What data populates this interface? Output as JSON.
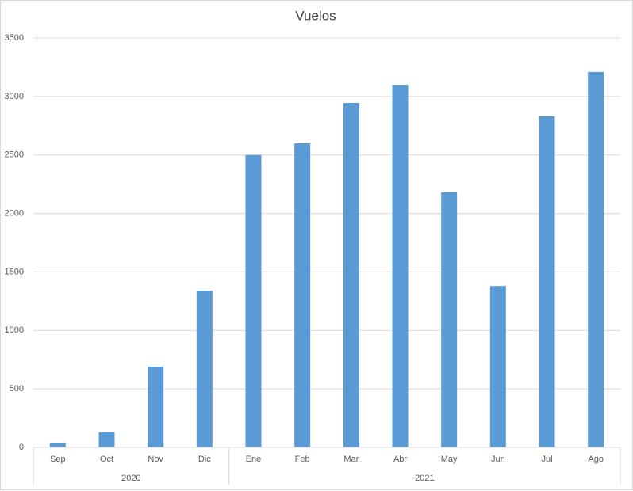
{
  "chart_data": {
    "type": "bar",
    "title": "Vuelos",
    "color": "#5b9bd5",
    "groups": [
      {
        "label": "2020",
        "categories": [
          "Sep",
          "Oct",
          "Nov",
          "Dic"
        ],
        "values": [
          35,
          130,
          690,
          1340
        ]
      },
      {
        "label": "2021",
        "categories": [
          "Ene",
          "Feb",
          "Mar",
          "Abr",
          "May",
          "Jun",
          "Jul",
          "Ago"
        ],
        "values": [
          2500,
          2600,
          2945,
          3100,
          2180,
          1380,
          2830,
          3210
        ]
      }
    ],
    "ylim": [
      0,
      3500
    ],
    "yticks": [
      0,
      500,
      1000,
      1500,
      2000,
      2500,
      3000,
      3500
    ],
    "grid": true
  }
}
